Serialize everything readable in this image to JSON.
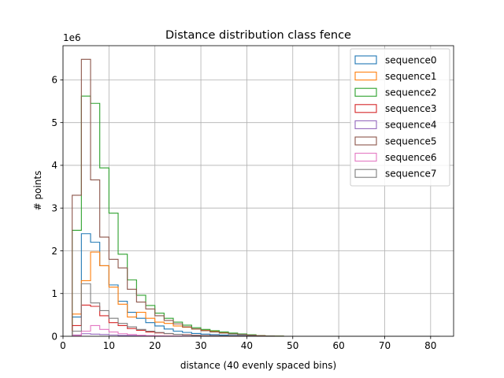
{
  "chart_data": {
    "type": "histogram",
    "title": "Distance distribution class fence",
    "xlabel": "distance (40 evenly spaced bins)",
    "ylabel": "# points",
    "y_multiplier_label": "1e6",
    "y_scale": 1000000,
    "xlim": [
      0,
      85
    ],
    "ylim": [
      0,
      6800000
    ],
    "x_ticks": [
      0,
      10,
      20,
      30,
      40,
      50,
      60,
      70,
      80
    ],
    "y_ticks": [
      0,
      1,
      2,
      3,
      4,
      5,
      6
    ],
    "grid": true,
    "legend_position": "upper-right",
    "bin_edges": [
      2,
      4,
      6,
      8,
      10,
      12,
      14,
      16,
      18,
      20,
      22,
      24,
      26,
      28,
      30,
      32,
      34,
      36,
      38,
      40,
      42,
      44,
      46,
      48,
      50,
      52,
      54,
      56,
      58,
      60,
      62,
      64,
      66,
      68,
      70,
      72,
      74,
      76,
      78,
      80,
      82
    ],
    "series": [
      {
        "name": "sequence0",
        "color": "#1f77b4",
        "values": [
          450000,
          2400000,
          2200000,
          1650000,
          1200000,
          820000,
          560000,
          420000,
          320000,
          240000,
          170000,
          120000,
          90000,
          65000,
          50000,
          38000,
          28000,
          20000,
          15000,
          10000,
          5000,
          3000,
          2000,
          0,
          0,
          0,
          0,
          0,
          0,
          0,
          0,
          0,
          0,
          0,
          0,
          0,
          0,
          0,
          0,
          0
        ]
      },
      {
        "name": "sequence1",
        "color": "#ff7f0e",
        "values": [
          520000,
          1300000,
          1970000,
          1650000,
          1150000,
          750000,
          450000,
          560000,
          420000,
          330000,
          300000,
          240000,
          210000,
          170000,
          140000,
          110000,
          90000,
          70000,
          50000,
          30000,
          15000,
          6000,
          3000,
          0,
          0,
          0,
          0,
          0,
          0,
          0,
          0,
          0,
          0,
          0,
          0,
          0,
          0,
          0,
          0,
          0
        ]
      },
      {
        "name": "sequence2",
        "color": "#2ca02c",
        "values": [
          2480000,
          5620000,
          5450000,
          3940000,
          2880000,
          1920000,
          1320000,
          960000,
          720000,
          540000,
          420000,
          330000,
          260000,
          200000,
          160000,
          130000,
          100000,
          75000,
          55000,
          35000,
          15000,
          8000,
          3000,
          0,
          0,
          0,
          0,
          0,
          0,
          0,
          0,
          0,
          0,
          0,
          0,
          0,
          0,
          0,
          0,
          0
        ]
      },
      {
        "name": "sequence3",
        "color": "#d62728",
        "values": [
          250000,
          730000,
          700000,
          480000,
          320000,
          250000,
          180000,
          140000,
          100000,
          80000,
          60000,
          45000,
          35000,
          25000,
          18000,
          12000,
          8000,
          5000,
          3000,
          2000,
          0,
          0,
          0,
          0,
          0,
          0,
          0,
          0,
          0,
          0,
          0,
          0,
          0,
          0,
          0,
          0,
          0,
          0,
          0,
          0
        ]
      },
      {
        "name": "sequence4",
        "color": "#9467bd",
        "values": [
          30000,
          60000,
          50000,
          40000,
          30000,
          20000,
          15000,
          10000,
          8000,
          5000,
          3000,
          2000,
          1000,
          0,
          0,
          0,
          0,
          0,
          0,
          0,
          0,
          0,
          0,
          0,
          0,
          0,
          0,
          0,
          0,
          0,
          0,
          0,
          0,
          0,
          0,
          0,
          0,
          0,
          0,
          0
        ]
      },
      {
        "name": "sequence5",
        "color": "#8c564b",
        "values": [
          3300000,
          6480000,
          3660000,
          2320000,
          1800000,
          1600000,
          1100000,
          800000,
          640000,
          480000,
          370000,
          290000,
          220000,
          170000,
          130000,
          100000,
          75000,
          55000,
          40000,
          25000,
          12000,
          5000,
          2000,
          0,
          0,
          0,
          0,
          0,
          0,
          0,
          0,
          0,
          0,
          0,
          0,
          0,
          0,
          0,
          0,
          0
        ]
      },
      {
        "name": "sequence6",
        "color": "#e377c2",
        "values": [
          20000,
          120000,
          250000,
          160000,
          100000,
          60000,
          40000,
          25000,
          15000,
          10000,
          6000,
          3000,
          1000,
          0,
          0,
          0,
          0,
          0,
          0,
          0,
          0,
          0,
          0,
          0,
          0,
          0,
          0,
          0,
          0,
          0,
          0,
          0,
          0,
          0,
          0,
          0,
          0,
          0,
          0,
          0
        ]
      },
      {
        "name": "sequence7",
        "color": "#7f7f7f",
        "values": [
          120000,
          1230000,
          780000,
          600000,
          420000,
          300000,
          220000,
          160000,
          120000,
          90000,
          65000,
          45000,
          30000,
          20000,
          12000,
          8000,
          5000,
          3000,
          1500,
          800,
          0,
          0,
          0,
          0,
          0,
          0,
          0,
          0,
          0,
          0,
          0,
          0,
          0,
          0,
          0,
          0,
          0,
          0,
          0,
          0
        ]
      }
    ]
  }
}
